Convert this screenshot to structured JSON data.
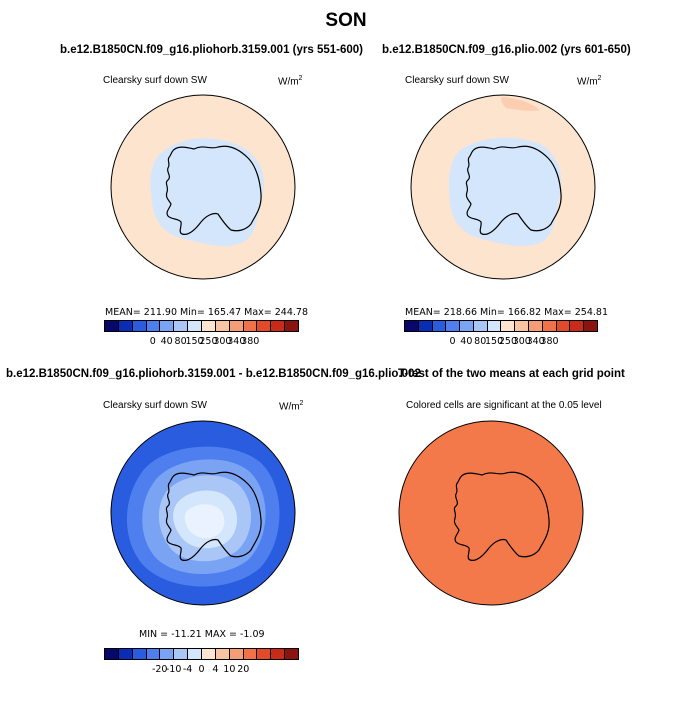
{
  "title": "SON",
  "panels": [
    {
      "title": "b.e12.B1850CN.f09_g16.pliohorb.3159.001 (yrs 551-600)",
      "left_label": "Clearsky surf down SW",
      "units": "W/m",
      "units_sup": "2",
      "stats": "MEAN= 211.90   Min= 165.47   Max= 244.78",
      "ticks": [
        "0",
        "40",
        "80",
        "150",
        "250",
        "300",
        "340",
        "380"
      ]
    },
    {
      "title": "b.e12.B1850CN.f09_g16.plio.002 (yrs 601-650)",
      "left_label": "Clearsky surf down SW",
      "units": "W/m",
      "units_sup": "2",
      "stats": "MEAN= 218.66   Min= 166.82   Max= 254.81",
      "ticks": [
        "0",
        "40",
        "80",
        "150",
        "250",
        "300",
        "340",
        "380"
      ]
    },
    {
      "title": "b.e12.B1850CN.f09_g16.pliohorb.3159.001 - b.e12.B1850CN.f09_g16.plio.002",
      "left_label": "Clearsky surf down SW",
      "units": "W/m",
      "units_sup": "2",
      "stats": "MIN = -11.21  MAX =  -1.09",
      "ticks": [
        "-20",
        "-10",
        "-4",
        "0",
        "4",
        "10",
        "20"
      ]
    },
    {
      "title": "T-test of the two means at each grid point",
      "center_label": "Colored cells are significant at the 0.05 level"
    }
  ],
  "colors": {
    "abs_scale": [
      "#08086b",
      "#0b2db5",
      "#2a5ce0",
      "#4f7fee",
      "#7aa3f4",
      "#a9c6f7",
      "#d4e6fc",
      "#fde4cf",
      "#f9c4a4",
      "#f49d76",
      "#ef7249",
      "#e24a2a",
      "#c82a1c",
      "#8c1410"
    ],
    "diff_scale": [
      "#08086b",
      "#0b2db5",
      "#2a5ce0",
      "#4f7fee",
      "#7aa3f4",
      "#a9c6f7",
      "#d4e6fc",
      "#fde4cf",
      "#f9c4a4",
      "#f49d76",
      "#ef7249",
      "#e24a2a",
      "#c82a1c",
      "#8c1410"
    ],
    "ocean_peach": "#fde4cf",
    "interior_blue": "#d4e6fc",
    "ttest_orange": "#f3784a"
  }
}
